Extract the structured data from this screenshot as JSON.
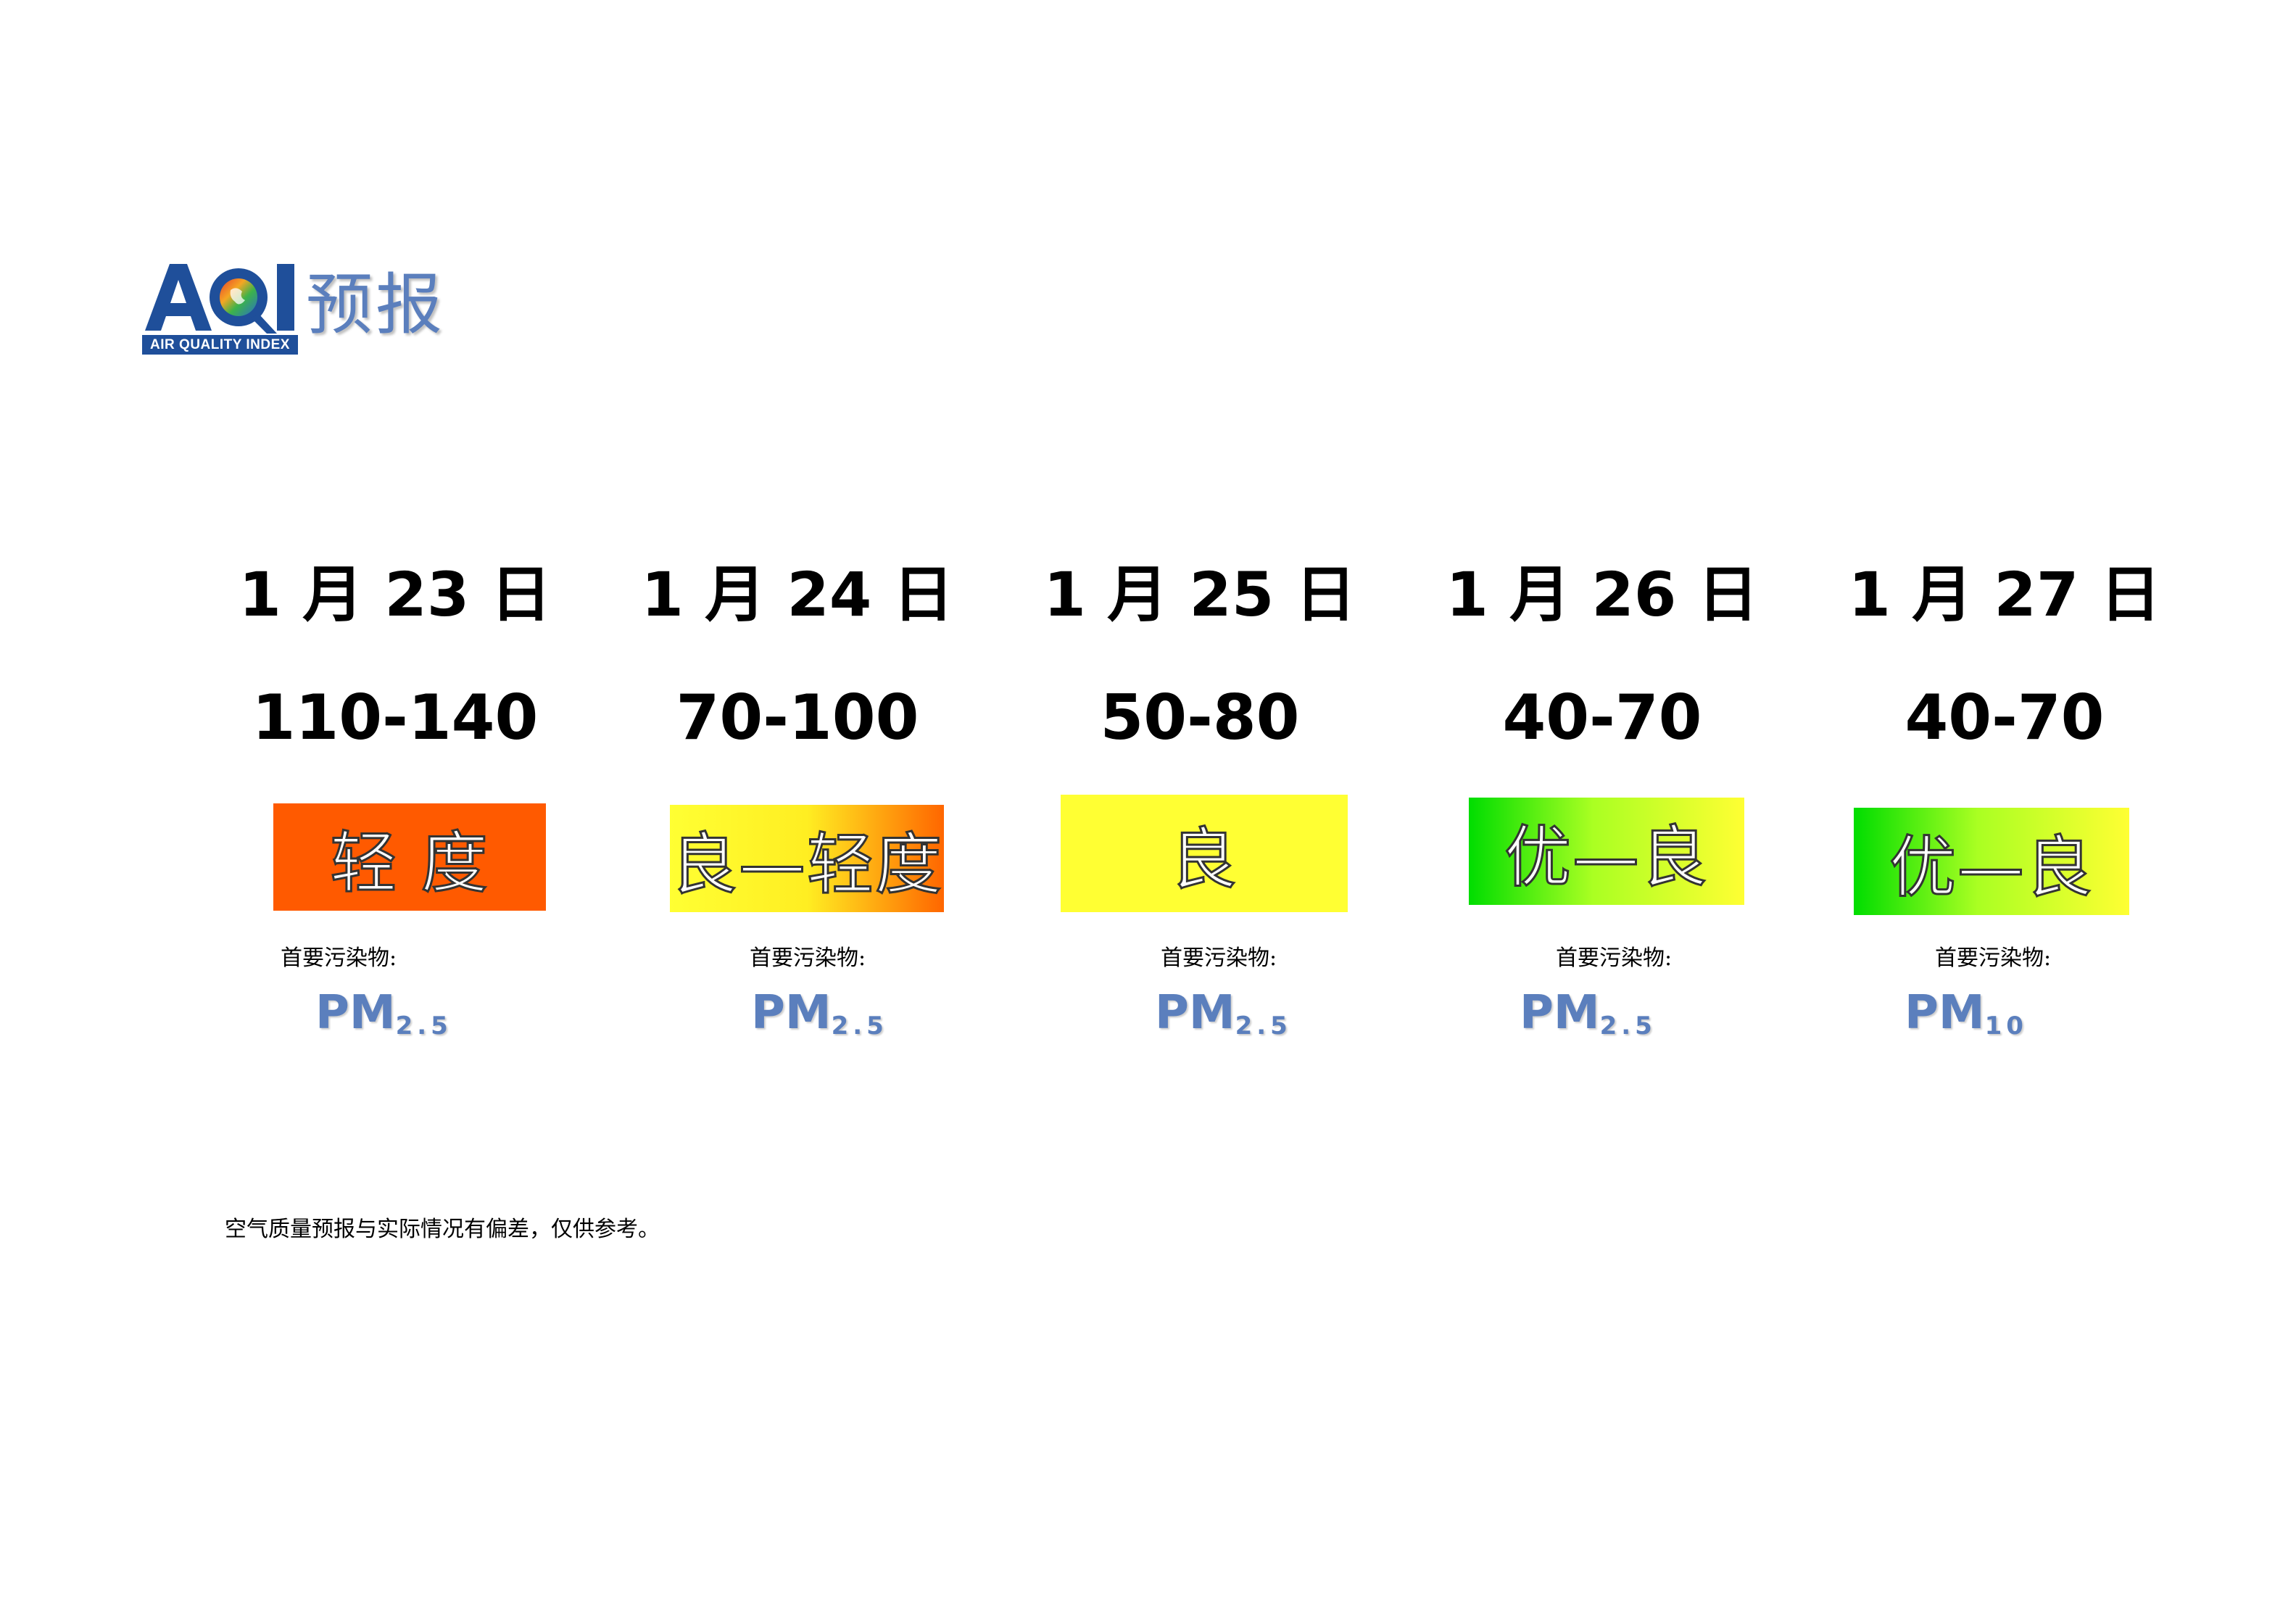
{
  "logo": {
    "letters": "AQI",
    "subtitle": "AIR QUALITY INDEX",
    "title": "预报"
  },
  "forecast": [
    {
      "date": "1 月 23 日",
      "range": "110-140",
      "level": "轻 度",
      "pollutant_label": "首要污染物:",
      "pollutant_main": "PM",
      "pollutant_sub": "2.5",
      "color_start": "#ff5a00",
      "color_end": "#ff5a00"
    },
    {
      "date": "1 月 24 日",
      "range": "70-100",
      "level": "良—轻度",
      "pollutant_label": "首要污染物:",
      "pollutant_main": "PM",
      "pollutant_sub": "2.5",
      "color_start": "#ffff33",
      "color_end": "#ff6600"
    },
    {
      "date": "1 月 25 日",
      "range": "50-80",
      "level": "良",
      "pollutant_label": "首要污染物:",
      "pollutant_main": "PM",
      "pollutant_sub": "2.5",
      "color_start": "#ffff33",
      "color_end": "#ffff33"
    },
    {
      "date": "1 月 26 日",
      "range": "40-70",
      "level": "优—良",
      "pollutant_label": "首要污染物:",
      "pollutant_main": "PM",
      "pollutant_sub": "2.5",
      "color_start": "#00dd00",
      "color_end": "#ffff33"
    },
    {
      "date": "1 月 27 日",
      "range": "40-70",
      "level": "优—良",
      "pollutant_label": "首要污染物:",
      "pollutant_main": "PM",
      "pollutant_sub": "10",
      "color_start": "#00dd00",
      "color_end": "#ffff33"
    }
  ],
  "disclaimer": "空气质量预报与实际情况有偏差，仅供参考。"
}
